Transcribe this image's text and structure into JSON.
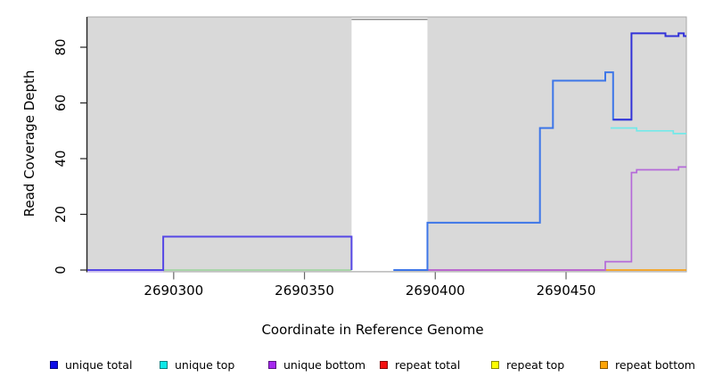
{
  "chart_data": {
    "type": "line",
    "subtype": "step-coverage",
    "title": "",
    "xlabel": "Coordinate in Reference Genome",
    "ylabel": "Read Coverage Depth",
    "xlim": [
      2690267,
      2690496
    ],
    "ylim": [
      0,
      91
    ],
    "grid": false,
    "legend_position": "bottom",
    "background_color": "#d9d9d9",
    "plot_border_color": "#a8a8a8",
    "x_ticks": [
      {
        "value": 2690300,
        "label": "2690300"
      },
      {
        "value": 2690350,
        "label": "2690350"
      },
      {
        "value": 2690400,
        "label": "2690400"
      },
      {
        "value": 2690450,
        "label": "2690450"
      }
    ],
    "y_ticks": [
      {
        "value": 0,
        "label": "0"
      },
      {
        "value": 20,
        "label": "20"
      },
      {
        "value": 40,
        "label": "40"
      },
      {
        "value": 60,
        "label": "60"
      },
      {
        "value": 80,
        "label": "80"
      }
    ],
    "gap_region": {
      "x_start": 2690368,
      "x_end": 2690397,
      "fill": "#ffffff",
      "top_line_value": 90,
      "top_line_color": "#919191"
    },
    "series": [
      {
        "name": "unique-bottom-baseline-fringe",
        "legend": "unique bottom",
        "color": "#c9baf0",
        "width": 1.6,
        "dy": 2,
        "points": [
          [
            2690267,
            0
          ],
          [
            2690296,
            0
          ]
        ]
      },
      {
        "name": "top-strand-overlap-baseline",
        "legend": "unique top + repeat top",
        "color": "#9bd49b",
        "width": 1.6,
        "dy": 0,
        "points": [
          [
            2690296,
            0
          ],
          [
            2690368,
            0
          ]
        ]
      },
      {
        "name": "repeat-total",
        "legend": "repeat total",
        "color": "#e23a5f",
        "width": 1.8,
        "dy": 0,
        "points": [
          [
            2690397,
            0
          ],
          [
            2690465,
            0
          ]
        ]
      },
      {
        "name": "repeat-bottom",
        "legend": "repeat bottom",
        "color": "#f6a11b",
        "width": 1.8,
        "dy": 0,
        "points": [
          [
            2690465,
            0
          ],
          [
            2690496,
            0
          ]
        ]
      },
      {
        "name": "unique-bottom",
        "legend": "unique bottom",
        "color": "#b56ad9",
        "width": 1.7,
        "dy": 0,
        "points": [
          [
            2690397,
            0
          ],
          [
            2690465,
            3
          ],
          [
            2690475,
            35
          ],
          [
            2690477,
            36
          ],
          [
            2690493,
            37
          ],
          [
            2690496,
            37
          ]
        ]
      },
      {
        "name": "unique-top",
        "legend": "unique top",
        "color": "#73e9e9",
        "width": 1.7,
        "dy": 0,
        "points": [
          [
            2690467,
            51
          ],
          [
            2690477,
            50
          ],
          [
            2690491,
            49
          ],
          [
            2690496,
            49
          ]
        ]
      },
      {
        "name": "unique-total-left",
        "legend": "unique total",
        "color": "#5547e5",
        "width": 2,
        "dy": 0,
        "points": [
          [
            2690267,
            0
          ],
          [
            2690296,
            12
          ],
          [
            2690368,
            0
          ]
        ]
      },
      {
        "name": "unique-total-mid",
        "legend": "unique total",
        "color": "#3d76e8",
        "width": 2,
        "dy": 0,
        "points": [
          [
            2690384,
            0
          ],
          [
            2690397,
            17
          ],
          [
            2690440,
            51
          ],
          [
            2690445,
            68
          ],
          [
            2690465,
            71
          ],
          [
            2690468,
            54
          ],
          [
            2690475,
            54
          ]
        ]
      },
      {
        "name": "unique-total-right",
        "legend": "unique total",
        "color": "#3232d8",
        "width": 2,
        "dy": 0,
        "points": [
          [
            2690468,
            54
          ],
          [
            2690475,
            85
          ],
          [
            2690488,
            84
          ],
          [
            2690493,
            85
          ],
          [
            2690495,
            84
          ],
          [
            2690496,
            84
          ]
        ]
      }
    ]
  },
  "legend": {
    "items": [
      {
        "label": "unique total",
        "color": "#0d0de8"
      },
      {
        "label": "unique top",
        "color": "#0ae8e8"
      },
      {
        "label": "unique bottom",
        "color": "#a527ee"
      },
      {
        "label": "repeat total",
        "color": "#f50f0f"
      },
      {
        "label": "repeat top",
        "color": "#fdfd00"
      },
      {
        "label": "repeat bottom",
        "color": "#ffa507"
      }
    ]
  }
}
